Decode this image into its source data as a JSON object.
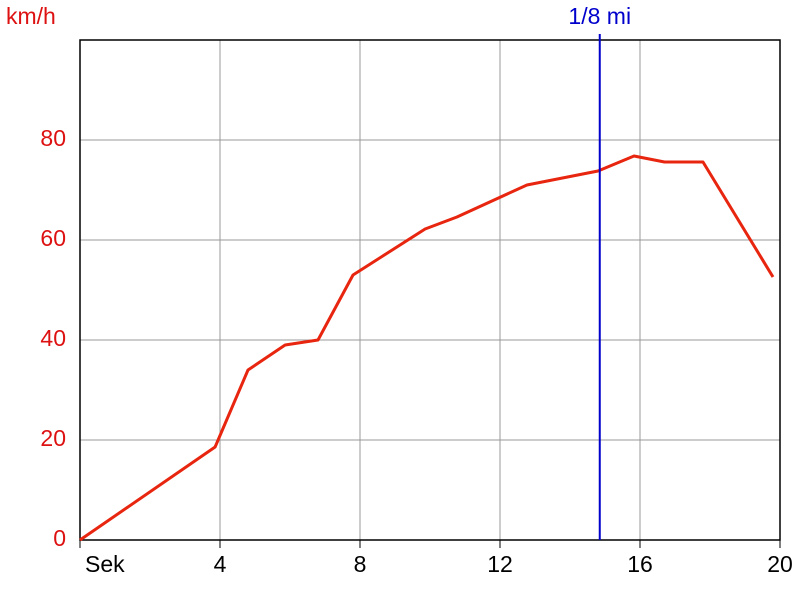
{
  "chart_data": {
    "type": "line",
    "y_label": "km/h",
    "x": [
      0,
      3.86,
      4.8,
      5.86,
      6.8,
      7.8,
      9.86,
      10.77,
      12.77,
      14.8,
      15.83,
      16.7,
      17.8,
      19.8
    ],
    "values": [
      0,
      18.6,
      34,
      39,
      40,
      53,
      62.2,
      64.6,
      71,
      73.8,
      76.8,
      75.6,
      75.6,
      52.6
    ],
    "color": "#e8250f",
    "xlim": [
      0,
      20
    ],
    "xticks": [
      {
        "value": 0,
        "label": "Sek"
      },
      4,
      8,
      12,
      16,
      20
    ],
    "ylim": [
      0,
      100
    ],
    "yticks": [
      0,
      20,
      40,
      60,
      80
    ],
    "grid": true,
    "markers": [
      {
        "x": 14.85,
        "label": "1/8 mi",
        "color": "#0000cc"
      }
    ]
  }
}
